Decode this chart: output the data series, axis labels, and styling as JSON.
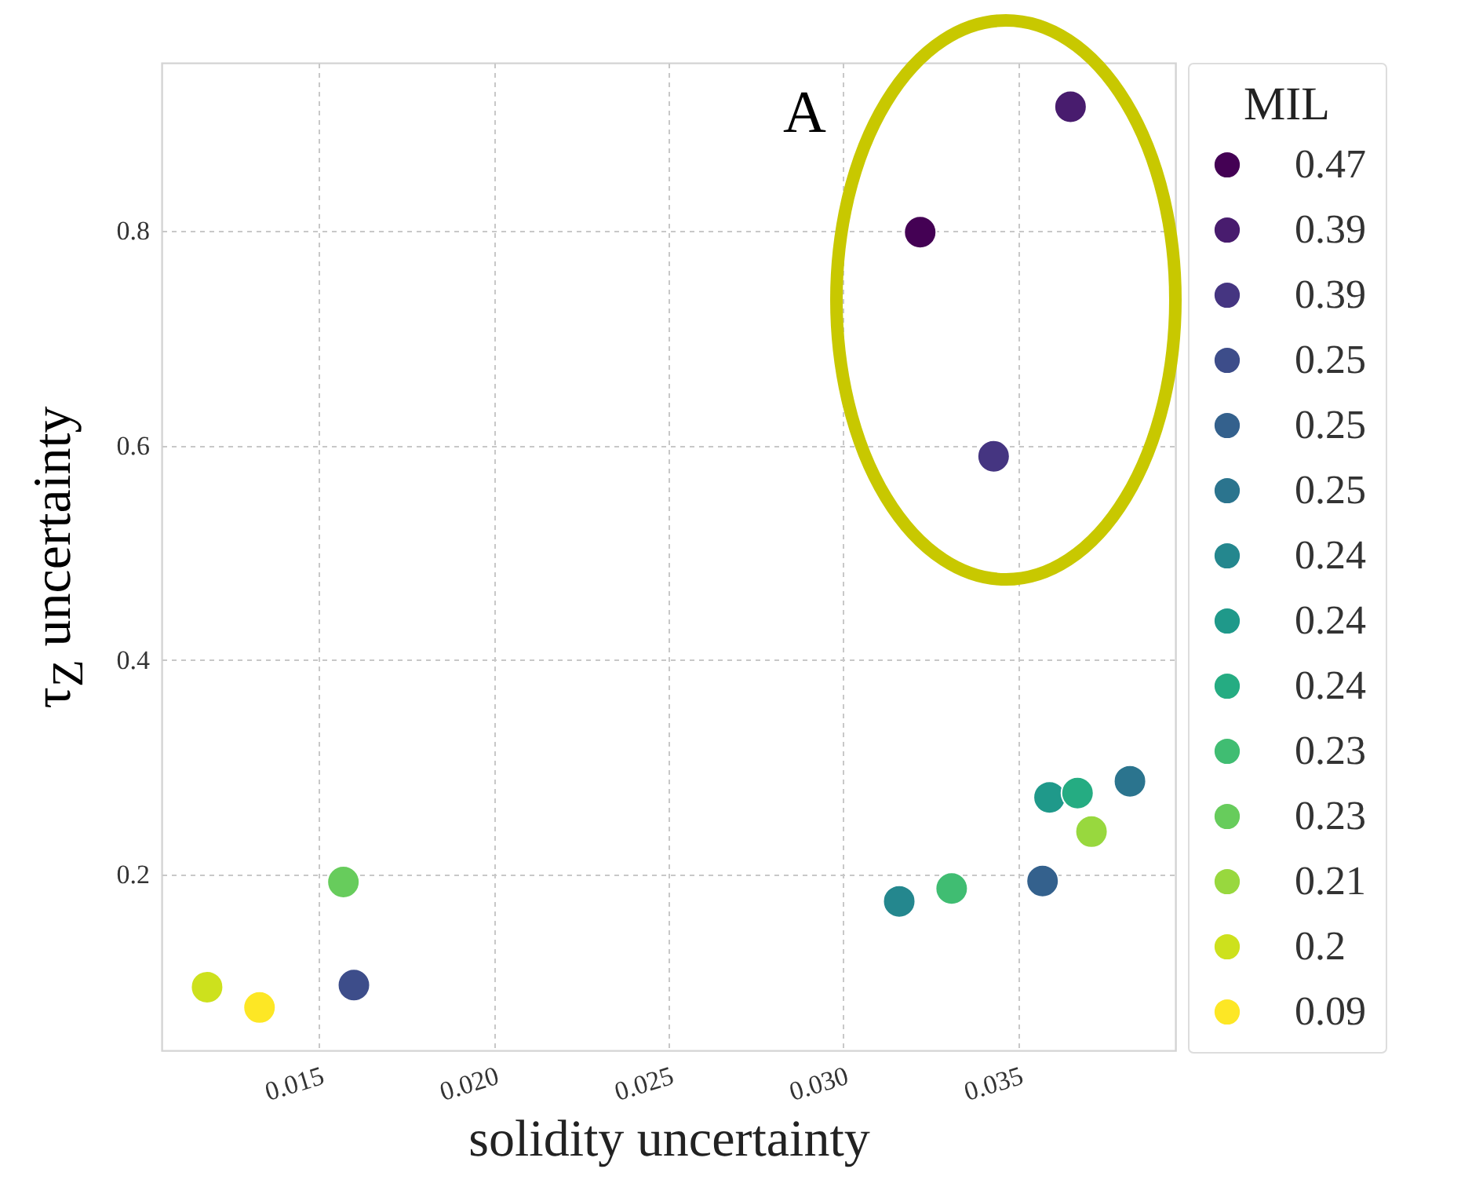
{
  "chart_data": {
    "type": "scatter",
    "xlabel": "solidity uncertainty",
    "ylabel": "τ$_{Z}$ uncertainty",
    "legend_title": "MIL",
    "xlim": [
      0.0105,
      0.0395
    ],
    "ylim": [
      0.036,
      0.957
    ],
    "xticks": [
      0.015,
      {
        "value": 0.02,
        "label": "0.020"
      },
      0.025,
      {
        "value": 0.03,
        "label": "0.030"
      },
      0.035
    ],
    "yticks": [
      0.2,
      0.4,
      0.6,
      0.8
    ],
    "grid": true,
    "legend": "right",
    "marker": "circle",
    "annotations": [
      "A"
    ],
    "series": [
      {
        "name": "0.47",
        "color": "#440154",
        "x": [
          0.0322
        ],
        "values": [
          0.799
        ]
      },
      {
        "name": "0.39",
        "color": "#481c6e",
        "x": [
          0.0365
        ],
        "values": [
          0.916
        ]
      },
      {
        "name": "0.39",
        "color": "#453581",
        "x": [
          0.0343
        ],
        "values": [
          0.59
        ]
      },
      {
        "name": "0.25",
        "color": "#3d4d8a",
        "x": [
          0.016
        ],
        "values": [
          0.097
        ]
      },
      {
        "name": "0.25",
        "color": "#34618d",
        "x": [
          0.0357
        ],
        "values": [
          0.194
        ]
      },
      {
        "name": "0.25",
        "color": "#2b748e",
        "x": [
          0.0382
        ],
        "values": [
          0.287
        ]
      },
      {
        "name": "0.24",
        "color": "#24878e",
        "x": [
          0.0316
        ],
        "values": [
          0.175
        ]
      },
      {
        "name": "0.24",
        "color": "#1f998a",
        "x": [
          0.0359
        ],
        "values": [
          0.272
        ]
      },
      {
        "name": "0.24",
        "color": "#25ac82",
        "x": [
          0.0367
        ],
        "values": [
          0.276
        ]
      },
      {
        "name": "0.23",
        "color": "#40bd72",
        "x": [
          0.0331
        ],
        "values": [
          0.187
        ]
      },
      {
        "name": "0.23",
        "color": "#67cc5c",
        "x": [
          0.0157
        ],
        "values": [
          0.193
        ]
      },
      {
        "name": "0.21",
        "color": "#98d83e",
        "x": [
          0.0371
        ],
        "values": [
          0.24
        ]
      },
      {
        "name": "0.2",
        "color": "#cde11d",
        "x": [
          0.0118
        ],
        "values": [
          0.095
        ]
      },
      {
        "name": "0.09",
        "color": "#fde725",
        "x": [
          0.0133
        ],
        "values": [
          0.076
        ]
      }
    ]
  }
}
